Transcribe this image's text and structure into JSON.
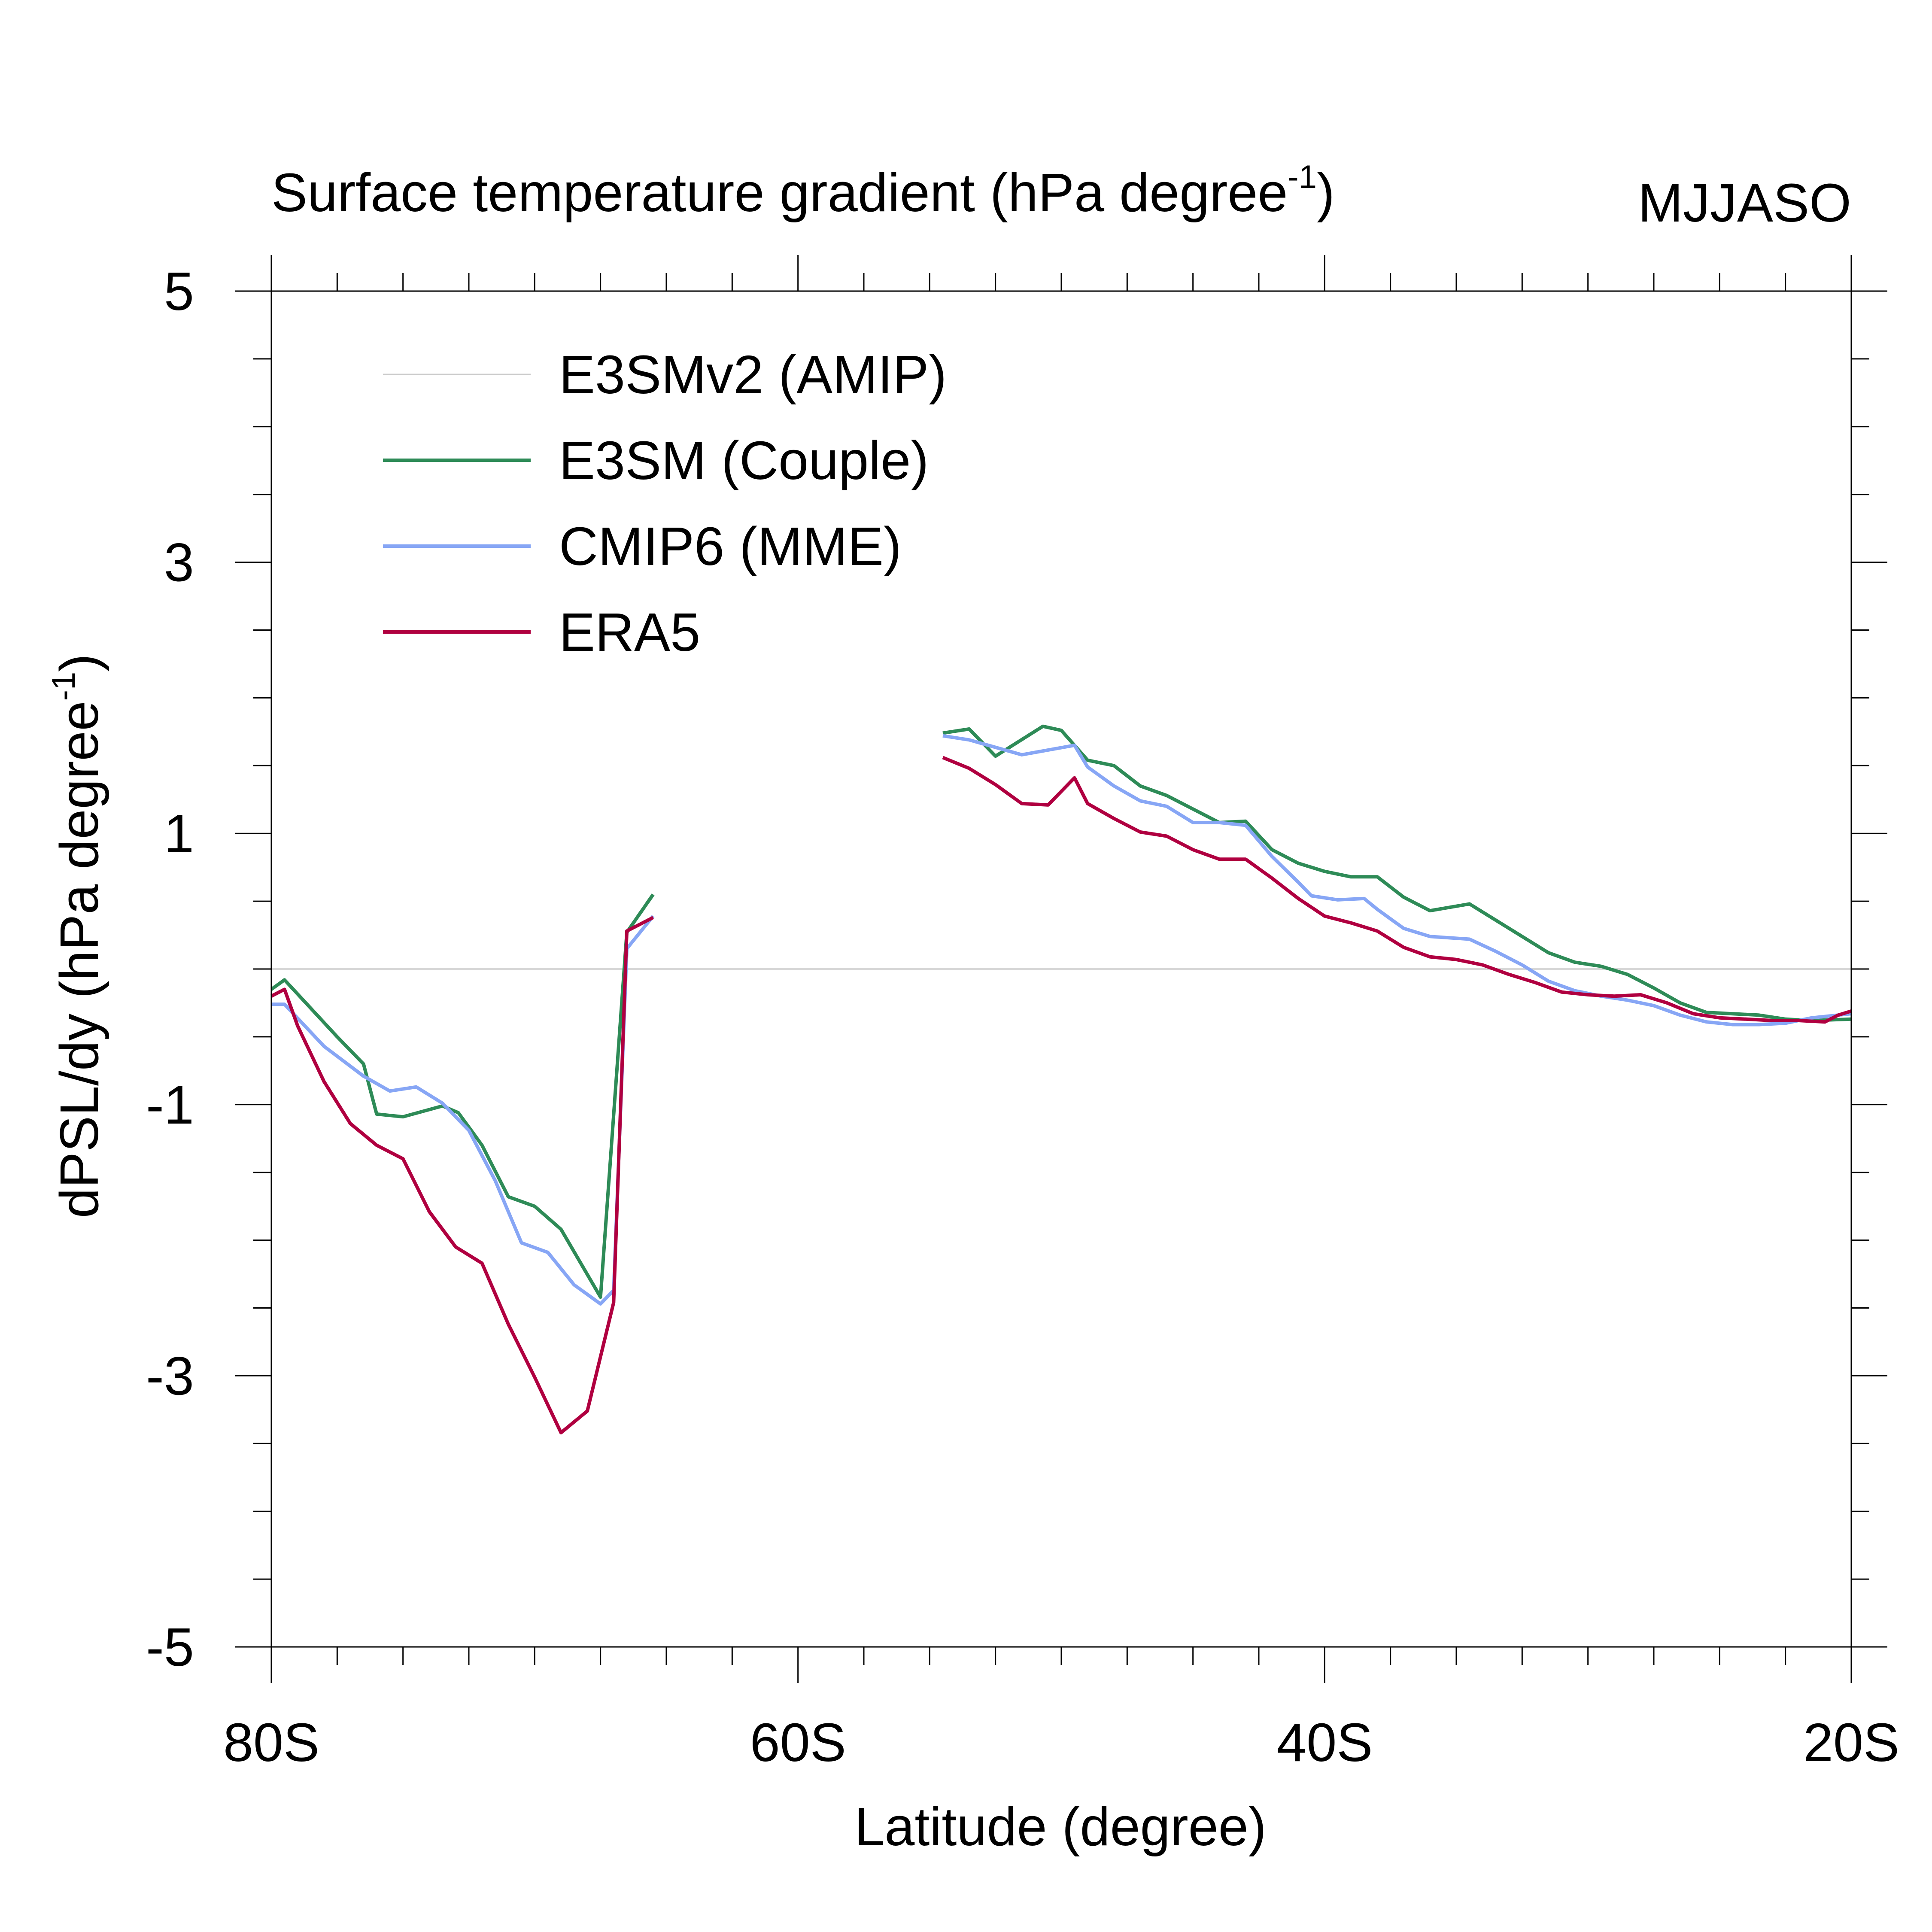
{
  "chart_data": {
    "type": "line",
    "title": "Surface temperature gradient (hPa degree",
    "title_superscript": "-1",
    "title_suffix": ")",
    "season_label": "MJJASO",
    "xlabel": "Latitude (degree)",
    "ylabel": "dPSL/dy (hPa degree",
    "ylabel_superscript": "-1",
    "ylabel_suffix": ")",
    "xlim": [
      -80,
      -20
    ],
    "ylim": [
      -5,
      5
    ],
    "x_ticks": [
      {
        "value": -80,
        "label": "80S"
      },
      {
        "value": -60,
        "label": "60S"
      },
      {
        "value": -40,
        "label": "40S"
      },
      {
        "value": -20,
        "label": "20S"
      }
    ],
    "y_ticks": [
      {
        "value": 5,
        "label": "5"
      },
      {
        "value": 3,
        "label": "3"
      },
      {
        "value": 1,
        "label": "1"
      },
      {
        "value": -1,
        "label": "-1"
      },
      {
        "value": -3,
        "label": "-3"
      },
      {
        "value": -5,
        "label": "-5"
      }
    ],
    "reference_line": 0,
    "series": [
      {
        "name": "E3SMv2 (AMIP)",
        "color": "#cccccc",
        "segments": []
      },
      {
        "name": "E3SM (Couple)",
        "color": "#2e8b57",
        "segments": [
          [
            [
              -80.0,
              -0.15
            ],
            [
              -79.5,
              -0.08
            ],
            [
              -77.5,
              -0.5
            ],
            [
              -76.5,
              -0.7
            ],
            [
              -76.0,
              -1.07
            ],
            [
              -75.0,
              -1.09
            ],
            [
              -73.5,
              -1.01
            ],
            [
              -72.9,
              -1.06
            ],
            [
              -72.0,
              -1.3
            ],
            [
              -71.0,
              -1.68
            ],
            [
              -70.0,
              -1.75
            ],
            [
              -69.0,
              -1.92
            ],
            [
              -67.5,
              -2.42
            ],
            [
              -66.5,
              0.27
            ],
            [
              -65.5,
              0.55
            ]
          ],
          [
            [
              -54.5,
              1.74
            ],
            [
              -53.5,
              1.77
            ],
            [
              -52.5,
              1.57
            ],
            [
              -50.7,
              1.79
            ],
            [
              -50.0,
              1.76
            ],
            [
              -49.0,
              1.54
            ],
            [
              -48.0,
              1.5
            ],
            [
              -47.0,
              1.35
            ],
            [
              -46.0,
              1.28
            ],
            [
              -45.0,
              1.18
            ],
            [
              -44.0,
              1.08
            ],
            [
              -43.0,
              1.09
            ],
            [
              -42.0,
              0.88
            ],
            [
              -41.0,
              0.78
            ],
            [
              -40.0,
              0.72
            ],
            [
              -39.0,
              0.68
            ],
            [
              -38.0,
              0.68
            ],
            [
              -37.0,
              0.53
            ],
            [
              -36.0,
              0.43
            ],
            [
              -34.5,
              0.48
            ],
            [
              -33.5,
              0.36
            ],
            [
              -32.5,
              0.24
            ],
            [
              -31.5,
              0.12
            ],
            [
              -30.5,
              0.05
            ],
            [
              -29.5,
              0.02
            ],
            [
              -28.5,
              -0.04
            ],
            [
              -27.5,
              -0.14
            ],
            [
              -26.5,
              -0.25
            ],
            [
              -25.5,
              -0.32
            ],
            [
              -24.5,
              -0.33
            ],
            [
              -23.5,
              -0.34
            ],
            [
              -22.5,
              -0.37
            ],
            [
              -21.5,
              -0.38
            ],
            [
              -20.0,
              -0.37
            ]
          ]
        ]
      },
      {
        "name": "CMIP6 (MME)",
        "color": "#87a6f5",
        "segments": [
          [
            [
              -80.0,
              -0.26
            ],
            [
              -79.5,
              -0.26
            ],
            [
              -78.0,
              -0.57
            ],
            [
              -76.5,
              -0.79
            ],
            [
              -75.5,
              -0.9
            ],
            [
              -74.5,
              -0.87
            ],
            [
              -73.5,
              -0.99
            ],
            [
              -72.5,
              -1.19
            ],
            [
              -71.5,
              -1.56
            ],
            [
              -70.5,
              -2.02
            ],
            [
              -69.5,
              -2.09
            ],
            [
              -68.5,
              -2.33
            ],
            [
              -67.5,
              -2.47
            ],
            [
              -67.0,
              -2.37
            ],
            [
              -66.5,
              0.15
            ],
            [
              -65.5,
              0.39
            ]
          ],
          [
            [
              -54.5,
              1.72
            ],
            [
              -53.5,
              1.69
            ],
            [
              -51.5,
              1.58
            ],
            [
              -49.5,
              1.65
            ],
            [
              -49.0,
              1.49
            ],
            [
              -48.0,
              1.35
            ],
            [
              -47.0,
              1.24
            ],
            [
              -46.0,
              1.2
            ],
            [
              -45.0,
              1.08
            ],
            [
              -44.0,
              1.08
            ],
            [
              -43.0,
              1.06
            ],
            [
              -42.0,
              0.83
            ],
            [
              -41.0,
              0.64
            ],
            [
              -40.5,
              0.54
            ],
            [
              -39.5,
              0.51
            ],
            [
              -38.5,
              0.52
            ],
            [
              -38.0,
              0.44
            ],
            [
              -37.0,
              0.3
            ],
            [
              -36.0,
              0.24
            ],
            [
              -34.5,
              0.22
            ],
            [
              -33.5,
              0.13
            ],
            [
              -32.5,
              0.03
            ],
            [
              -31.5,
              -0.09
            ],
            [
              -30.5,
              -0.16
            ],
            [
              -29.5,
              -0.2
            ],
            [
              -28.5,
              -0.23
            ],
            [
              -27.5,
              -0.27
            ],
            [
              -26.5,
              -0.34
            ],
            [
              -25.5,
              -0.39
            ],
            [
              -24.5,
              -0.41
            ],
            [
              -23.5,
              -0.41
            ],
            [
              -22.5,
              -0.4
            ],
            [
              -21.5,
              -0.36
            ],
            [
              -20.0,
              -0.33
            ]
          ]
        ]
      },
      {
        "name": "ERA5",
        "color": "#b00040",
        "segments": [
          [
            [
              -80.0,
              -0.2
            ],
            [
              -79.5,
              -0.15
            ],
            [
              -79.0,
              -0.42
            ],
            [
              -78.0,
              -0.83
            ],
            [
              -77.0,
              -1.14
            ],
            [
              -76.0,
              -1.3
            ],
            [
              -75.0,
              -1.4
            ],
            [
              -74.0,
              -1.79
            ],
            [
              -73.0,
              -2.05
            ],
            [
              -72.0,
              -2.17
            ],
            [
              -71.0,
              -2.62
            ],
            [
              -70.0,
              -3.01
            ],
            [
              -69.0,
              -3.42
            ],
            [
              -68.0,
              -3.26
            ],
            [
              -67.0,
              -2.46
            ],
            [
              -66.5,
              0.28
            ],
            [
              -65.5,
              0.38
            ]
          ],
          [
            [
              -54.5,
              1.56
            ],
            [
              -53.5,
              1.48
            ],
            [
              -52.5,
              1.36
            ],
            [
              -51.5,
              1.22
            ],
            [
              -50.5,
              1.21
            ],
            [
              -49.5,
              1.41
            ],
            [
              -49.0,
              1.22
            ],
            [
              -48.0,
              1.11
            ],
            [
              -47.0,
              1.01
            ],
            [
              -46.0,
              0.98
            ],
            [
              -45.0,
              0.88
            ],
            [
              -44.0,
              0.81
            ],
            [
              -43.0,
              0.81
            ],
            [
              -42.0,
              0.67
            ],
            [
              -41.0,
              0.52
            ],
            [
              -40.0,
              0.39
            ],
            [
              -39.0,
              0.34
            ],
            [
              -38.0,
              0.28
            ],
            [
              -37.0,
              0.16
            ],
            [
              -36.0,
              0.09
            ],
            [
              -35.0,
              0.07
            ],
            [
              -34.0,
              0.03
            ],
            [
              -33.0,
              -0.04
            ],
            [
              -32.0,
              -0.1
            ],
            [
              -31.0,
              -0.17
            ],
            [
              -30.0,
              -0.19
            ],
            [
              -29.0,
              -0.2
            ],
            [
              -28.0,
              -0.19
            ],
            [
              -27.0,
              -0.25
            ],
            [
              -26.0,
              -0.33
            ],
            [
              -25.0,
              -0.36
            ],
            [
              -24.0,
              -0.37
            ],
            [
              -23.0,
              -0.38
            ],
            [
              -22.0,
              -0.38
            ],
            [
              -21.0,
              -0.39
            ],
            [
              -20.5,
              -0.34
            ],
            [
              -20.0,
              -0.31
            ]
          ]
        ]
      }
    ]
  }
}
